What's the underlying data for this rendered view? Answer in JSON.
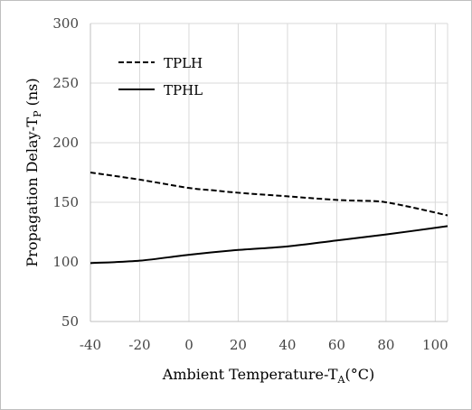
{
  "chart_data": {
    "type": "line",
    "title": "",
    "xlabel": "Ambient Temperature-T",
    "xlabel_sub": "A",
    "xlabel_suffix": "(°C)",
    "ylabel": "Propagation Delay-T",
    "ylabel_sub": "P",
    "ylabel_suffix": " (ns)",
    "xlim": [
      -40,
      105
    ],
    "ylim": [
      50,
      300
    ],
    "x_ticks": [
      -40,
      -20,
      0,
      20,
      40,
      60,
      80,
      100
    ],
    "y_ticks": [
      50,
      100,
      150,
      200,
      250,
      300
    ],
    "grid": true,
    "legend_position": "top-left",
    "series": [
      {
        "name": "TPLH",
        "style": "dashed",
        "color": "#000000",
        "x": [
          -40,
          -20,
          0,
          10,
          20,
          40,
          60,
          75,
          80,
          90,
          105
        ],
        "y": [
          175,
          169,
          162,
          160,
          158,
          155,
          152,
          151,
          150,
          146,
          139
        ]
      },
      {
        "name": "TPHL",
        "style": "solid",
        "color": "#000000",
        "x": [
          -40,
          -20,
          0,
          20,
          40,
          60,
          80,
          105
        ],
        "y": [
          99,
          101,
          106,
          110,
          113,
          118,
          123,
          130
        ]
      }
    ]
  }
}
